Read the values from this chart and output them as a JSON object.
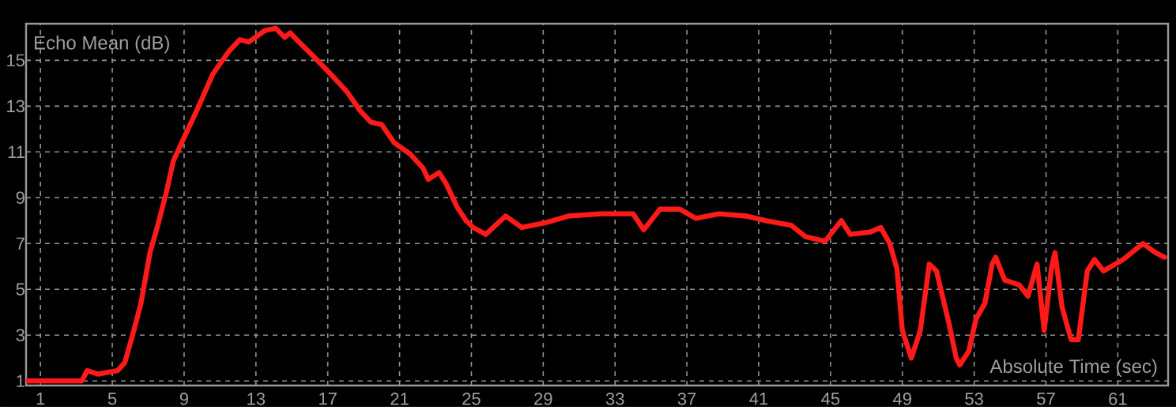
{
  "chart_data": {
    "type": "line",
    "xlabel": "Absolute Time (sec)",
    "ylabel": "Echo Mean (dB)",
    "xlim": [
      0.2,
      63.8
    ],
    "ylim": [
      0.8,
      16.6
    ],
    "xticks": [
      1,
      5,
      9,
      13,
      17,
      21,
      25,
      29,
      33,
      37,
      41,
      45,
      49,
      53,
      57,
      61
    ],
    "yticks": [
      1,
      3,
      5,
      7,
      9,
      11,
      13,
      15
    ],
    "grid": true,
    "line_style": "solid",
    "series": [
      {
        "color": "#ff1a1a",
        "x": [
          0.2,
          3.3,
          3.6,
          4.2,
          5.3,
          5.7,
          6.2,
          6.6,
          7.1,
          7.5,
          8.0,
          8.4,
          9.1,
          9.7,
          10.6,
          11.5,
          12.1,
          12.6,
          13.5,
          14.1,
          14.6,
          14.9,
          15.4,
          16.3,
          17.4,
          18.1,
          18.8,
          19.4,
          20.0,
          20.7,
          21.6,
          22.3,
          22.6,
          23.2,
          23.6,
          24.2,
          24.7,
          25.1,
          25.8,
          26.9,
          27.8,
          29.1,
          30.4,
          32.2,
          34.0,
          34.6,
          35.5,
          36.6,
          37.5,
          38.8,
          40.3,
          41.4,
          42.8,
          43.6,
          44.7,
          45.6,
          46.1,
          47.2,
          47.8,
          48.3,
          48.7,
          49.0,
          49.5,
          50.0,
          50.5,
          50.9,
          51.6,
          52.0,
          52.2,
          52.7,
          53.1,
          53.6,
          54.0,
          54.2,
          54.7,
          55.5,
          56.0,
          56.5,
          56.9,
          57.3,
          57.5,
          57.9,
          58.4,
          58.8,
          59.3,
          59.7,
          60.2,
          61.3,
          62.4,
          63.1,
          63.6
        ],
        "values": [
          1.0,
          1.0,
          1.45,
          1.3,
          1.45,
          1.8,
          3.2,
          4.4,
          6.6,
          7.7,
          9.2,
          10.6,
          11.8,
          12.8,
          14.4,
          15.4,
          15.9,
          15.8,
          16.3,
          16.4,
          16.0,
          16.2,
          15.8,
          15.1,
          14.2,
          13.6,
          12.8,
          12.3,
          12.2,
          11.4,
          10.9,
          10.3,
          9.8,
          10.1,
          9.6,
          8.6,
          8.0,
          7.7,
          7.4,
          8.2,
          7.7,
          7.9,
          8.2,
          8.3,
          8.3,
          7.6,
          8.5,
          8.5,
          8.1,
          8.3,
          8.2,
          8.0,
          7.8,
          7.3,
          7.1,
          8.0,
          7.4,
          7.5,
          7.7,
          7.0,
          5.9,
          3.2,
          2.0,
          3.2,
          6.1,
          5.8,
          3.5,
          2.0,
          1.7,
          2.3,
          3.7,
          4.4,
          6.1,
          6.4,
          5.4,
          5.2,
          4.7,
          6.1,
          3.2,
          5.9,
          6.6,
          4.2,
          2.8,
          2.8,
          5.8,
          6.3,
          5.8,
          6.3,
          7.0,
          6.6,
          6.4
        ]
      }
    ]
  }
}
